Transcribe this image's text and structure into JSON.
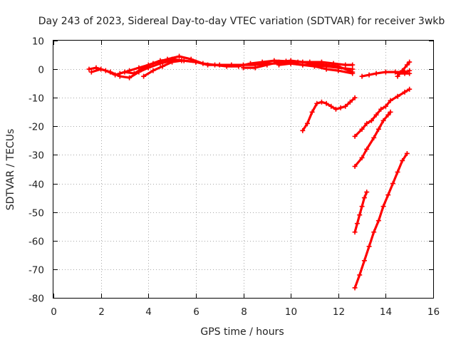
{
  "chart_data": {
    "type": "scatter",
    "title": "Day 243 of 2023, Sidereal Day-to-day VTEC variation (SDTVAR) for receiver 3wkb",
    "xlabel": "GPS time / hours",
    "ylabel": "SDTVAR / TECUs",
    "xlim": [
      0,
      16
    ],
    "ylim": [
      -80,
      10
    ],
    "xticks": [
      "0",
      "2",
      "4",
      "6",
      "8",
      "10",
      "12",
      "14",
      "16"
    ],
    "yticks": [
      "10",
      "0",
      "-10",
      "-20",
      "-30",
      "-40",
      "-50",
      "-60",
      "-70",
      "-80"
    ],
    "grid": true,
    "marker_color": "#ff0000",
    "series": [
      {
        "points": [
          [
            1.5,
            0
          ],
          [
            1.8,
            0.5
          ],
          [
            2.2,
            -0.5
          ],
          [
            2.6,
            -2
          ],
          [
            3.0,
            -1
          ],
          [
            3.4,
            -1.5
          ],
          [
            3.8,
            0.5
          ],
          [
            4.2,
            2
          ],
          [
            4.8,
            3.5
          ],
          [
            5.3,
            4.5
          ],
          [
            5.8,
            3.5
          ],
          [
            6.3,
            2
          ],
          [
            6.8,
            1.5
          ],
          [
            7.3,
            1
          ],
          [
            7.8,
            1
          ],
          [
            8.3,
            2
          ],
          [
            8.8,
            2.5
          ],
          [
            9.3,
            3
          ],
          [
            9.8,
            2.8
          ],
          [
            10.3,
            2.5
          ],
          [
            10.8,
            2.5
          ],
          [
            11.3,
            2.5
          ],
          [
            11.8,
            2
          ],
          [
            12.3,
            1.5
          ],
          [
            12.6,
            1.5
          ]
        ]
      },
      {
        "points": [
          [
            1.6,
            -1
          ],
          [
            2.0,
            0
          ],
          [
            2.4,
            -1
          ],
          [
            2.8,
            -2.5
          ],
          [
            3.2,
            -3
          ],
          [
            3.6,
            -1
          ],
          [
            4.0,
            0.5
          ],
          [
            4.5,
            2
          ],
          [
            5.0,
            3
          ],
          [
            5.5,
            3
          ],
          [
            6.0,
            2.5
          ],
          [
            6.5,
            1.5
          ],
          [
            7.0,
            1.5
          ],
          [
            7.5,
            1.5
          ],
          [
            8.0,
            1.5
          ],
          [
            8.5,
            1.5
          ],
          [
            9.0,
            2
          ],
          [
            9.5,
            2
          ],
          [
            10.0,
            2
          ],
          [
            10.5,
            1.5
          ],
          [
            11.0,
            1.5
          ],
          [
            11.5,
            1
          ],
          [
            12.0,
            0.5
          ],
          [
            12.6,
            0
          ]
        ]
      },
      {
        "points": [
          [
            2.8,
            -1.5
          ],
          [
            3.2,
            -0.5
          ],
          [
            3.6,
            0.5
          ],
          [
            4.0,
            1.5
          ],
          [
            4.5,
            3
          ],
          [
            5.0,
            3.5
          ],
          [
            5.5,
            3
          ],
          [
            6.0,
            2.5
          ]
        ]
      },
      {
        "points": [
          [
            3.8,
            -2.5
          ],
          [
            4.2,
            -0.5
          ],
          [
            4.6,
            1
          ],
          [
            5.0,
            2.5
          ],
          [
            5.4,
            3
          ]
        ]
      },
      {
        "points": [
          [
            8.0,
            0.5
          ],
          [
            8.5,
            0.5
          ],
          [
            9.0,
            1.5
          ],
          [
            9.5,
            2.5
          ],
          [
            10.0,
            3
          ],
          [
            10.5,
            2.5
          ],
          [
            11.0,
            2
          ],
          [
            11.5,
            1.5
          ],
          [
            12.0,
            1
          ],
          [
            12.6,
            -1
          ]
        ]
      },
      {
        "points": [
          [
            9.5,
            1.5
          ],
          [
            10.0,
            2
          ],
          [
            10.5,
            1.5
          ],
          [
            11.0,
            1
          ],
          [
            11.5,
            0
          ],
          [
            12.0,
            -0.5
          ],
          [
            12.6,
            -1.5
          ]
        ]
      },
      {
        "points": [
          [
            10.5,
            -21.5
          ],
          [
            10.7,
            -19
          ],
          [
            10.9,
            -15
          ],
          [
            11.1,
            -12
          ],
          [
            11.3,
            -11.5
          ],
          [
            11.5,
            -12
          ],
          [
            11.7,
            -13
          ],
          [
            11.9,
            -14
          ],
          [
            12.1,
            -13.5
          ],
          [
            12.3,
            -13
          ],
          [
            12.5,
            -11.5
          ],
          [
            12.7,
            -10
          ]
        ]
      },
      {
        "points": [
          [
            12.7,
            -23.5
          ],
          [
            13.0,
            -21
          ],
          [
            13.2,
            -19
          ],
          [
            13.4,
            -18
          ],
          [
            13.6,
            -16
          ],
          [
            13.8,
            -14
          ],
          [
            14.0,
            -13
          ],
          [
            14.2,
            -11
          ],
          [
            14.5,
            -9.5
          ],
          [
            14.8,
            -8
          ],
          [
            15.0,
            -7
          ]
        ]
      },
      {
        "points": [
          [
            12.7,
            -34
          ],
          [
            13.0,
            -31
          ],
          [
            13.2,
            -28
          ],
          [
            13.5,
            -24
          ],
          [
            13.7,
            -21
          ],
          [
            13.9,
            -18
          ],
          [
            14.1,
            -16
          ],
          [
            14.2,
            -15
          ]
        ]
      },
      {
        "points": [
          [
            13.0,
            -2.5
          ],
          [
            13.3,
            -2
          ],
          [
            13.6,
            -1.5
          ],
          [
            14.0,
            -1
          ],
          [
            14.4,
            -1
          ],
          [
            14.8,
            -1
          ],
          [
            15.0,
            -0.5
          ]
        ]
      },
      {
        "points": [
          [
            14.5,
            -2.5
          ],
          [
            14.7,
            -0.5
          ],
          [
            14.9,
            1.5
          ],
          [
            15.0,
            2.5
          ]
        ]
      },
      {
        "points": [
          [
            14.5,
            -1.5
          ],
          [
            14.8,
            -1.5
          ],
          [
            15.0,
            -1.5
          ]
        ]
      },
      {
        "points": [
          [
            12.7,
            -57
          ],
          [
            12.8,
            -54
          ],
          [
            12.9,
            -51
          ],
          [
            13.0,
            -48
          ],
          [
            13.1,
            -45
          ],
          [
            13.2,
            -43
          ]
        ]
      },
      {
        "points": [
          [
            12.7,
            -76.5
          ],
          [
            12.9,
            -72
          ],
          [
            13.1,
            -67
          ],
          [
            13.3,
            -62
          ],
          [
            13.5,
            -57
          ],
          [
            13.7,
            -53
          ],
          [
            13.9,
            -48
          ],
          [
            14.1,
            -44
          ],
          [
            14.3,
            -40
          ],
          [
            14.5,
            -36
          ],
          [
            14.7,
            -32
          ],
          [
            14.9,
            -29.5
          ]
        ]
      }
    ]
  }
}
